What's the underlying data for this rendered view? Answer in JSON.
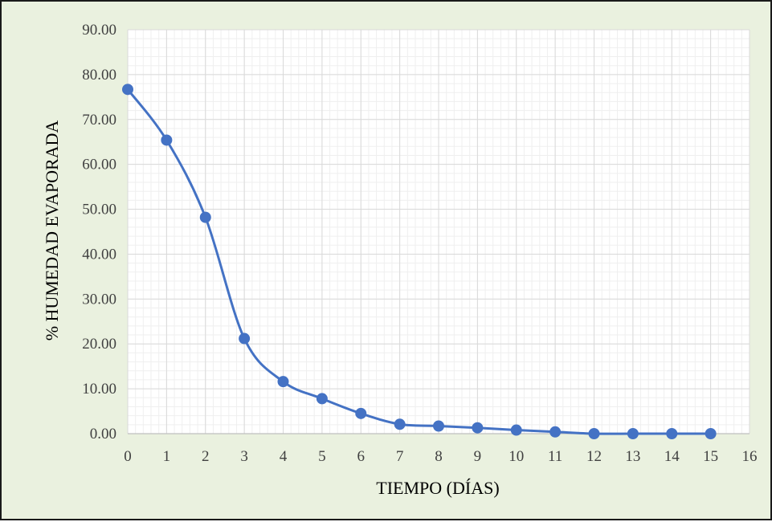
{
  "chart_data": {
    "type": "line",
    "title": "",
    "xlabel": "TIEMPO (DÍAS)",
    "ylabel": "% HUMEDAD EVAPORADA",
    "xlim": [
      0,
      16
    ],
    "ylim": [
      0,
      90
    ],
    "x_ticks": [
      "0",
      "1",
      "2",
      "3",
      "4",
      "5",
      "6",
      "7",
      "8",
      "9",
      "10",
      "11",
      "12",
      "13",
      "14",
      "15",
      "16"
    ],
    "y_ticks": [
      "0.00",
      "10.00",
      "20.00",
      "30.00",
      "40.00",
      "50.00",
      "60.00",
      "70.00",
      "80.00",
      "90.00"
    ],
    "grid": true,
    "smooth": true,
    "colors": {
      "series": "#4472c4",
      "background": "#eaf1df",
      "plot_area": "#ffffff",
      "grid_major": "#d9d9d9",
      "grid_minor": "#efefef"
    },
    "series": [
      {
        "x": [
          0,
          1,
          2,
          3,
          4,
          5,
          6,
          7,
          8,
          9,
          10,
          11,
          12,
          13,
          14,
          15
        ],
        "values": [
          76.7,
          65.4,
          48.2,
          21.2,
          11.6,
          7.8,
          4.5,
          2.1,
          1.7,
          1.3,
          0.8,
          0.4,
          0.0,
          0.0,
          0.0,
          0.0
        ]
      }
    ]
  }
}
